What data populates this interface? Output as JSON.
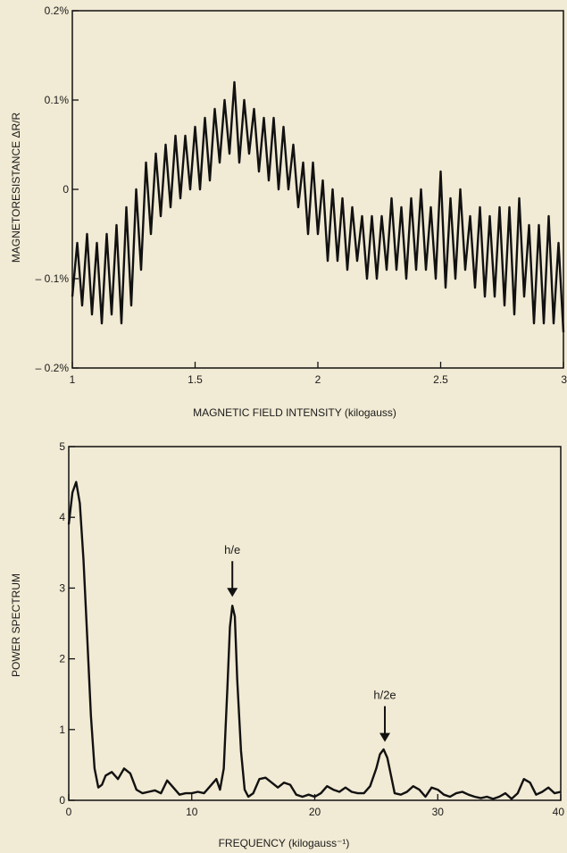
{
  "chart_data": [
    {
      "type": "line",
      "title": "",
      "xlabel": "MAGNETIC FIELD INTENSITY (kilogauss)",
      "ylabel": "MAGNETORESISTANCE ΔR/R",
      "xlim": [
        1,
        3
      ],
      "ylim": [
        -0.2,
        0.2
      ],
      "grid": false,
      "x_ticks": [
        {
          "value": 1,
          "label": "1"
        },
        {
          "value": 1.5,
          "label": "1.5"
        },
        {
          "value": 2,
          "label": "2"
        },
        {
          "value": 2.5,
          "label": "2.5"
        },
        {
          "value": 3,
          "label": "3"
        }
      ],
      "y_ticks": [
        {
          "value": 0.2,
          "label": "0.2%"
        },
        {
          "value": 0.1,
          "label": "0.1%"
        },
        {
          "value": 0,
          "label": "0"
        },
        {
          "value": -0.1,
          "label": "– 0.1%"
        },
        {
          "value": -0.2,
          "label": "– 0.2%"
        }
      ],
      "series": [
        {
          "color": "#111111",
          "x": [
            1.0,
            1.02,
            1.04,
            1.06,
            1.08,
            1.1,
            1.12,
            1.14,
            1.16,
            1.18,
            1.2,
            1.22,
            1.24,
            1.26,
            1.28,
            1.3,
            1.32,
            1.34,
            1.36,
            1.38,
            1.4,
            1.42,
            1.44,
            1.46,
            1.48,
            1.5,
            1.52,
            1.54,
            1.56,
            1.58,
            1.6,
            1.62,
            1.64,
            1.66,
            1.68,
            1.7,
            1.72,
            1.74,
            1.76,
            1.78,
            1.8,
            1.82,
            1.84,
            1.86,
            1.88,
            1.9,
            1.92,
            1.94,
            1.96,
            1.98,
            2.0,
            2.02,
            2.04,
            2.06,
            2.08,
            2.1,
            2.12,
            2.14,
            2.16,
            2.18,
            2.2,
            2.22,
            2.24,
            2.26,
            2.28,
            2.3,
            2.32,
            2.34,
            2.36,
            2.38,
            2.4,
            2.42,
            2.44,
            2.46,
            2.48,
            2.5,
            2.52,
            2.54,
            2.56,
            2.58,
            2.6,
            2.62,
            2.64,
            2.66,
            2.68,
            2.7,
            2.72,
            2.74,
            2.76,
            2.78,
            2.8,
            2.82,
            2.84,
            2.86,
            2.88,
            2.9,
            2.92,
            2.94,
            2.96,
            2.98,
            3.0
          ],
          "y": [
            -0.12,
            -0.06,
            -0.13,
            -0.05,
            -0.14,
            -0.06,
            -0.15,
            -0.05,
            -0.14,
            -0.04,
            -0.15,
            -0.02,
            -0.13,
            0.0,
            -0.09,
            0.03,
            -0.05,
            0.04,
            -0.03,
            0.05,
            -0.02,
            0.06,
            -0.01,
            0.06,
            0.0,
            0.07,
            0.0,
            0.08,
            0.01,
            0.09,
            0.03,
            0.1,
            0.04,
            0.12,
            0.03,
            0.1,
            0.04,
            0.09,
            0.02,
            0.08,
            0.01,
            0.08,
            0.0,
            0.07,
            0.0,
            0.05,
            -0.02,
            0.03,
            -0.05,
            0.03,
            -0.05,
            0.01,
            -0.08,
            0.0,
            -0.08,
            -0.01,
            -0.09,
            -0.02,
            -0.08,
            -0.03,
            -0.1,
            -0.03,
            -0.1,
            -0.03,
            -0.09,
            -0.01,
            -0.09,
            -0.02,
            -0.1,
            -0.01,
            -0.09,
            0.0,
            -0.09,
            -0.02,
            -0.1,
            0.02,
            -0.11,
            -0.01,
            -0.1,
            0.0,
            -0.09,
            -0.03,
            -0.11,
            -0.02,
            -0.12,
            -0.03,
            -0.12,
            -0.02,
            -0.13,
            -0.02,
            -0.14,
            -0.01,
            -0.12,
            -0.04,
            -0.15,
            -0.04,
            -0.15,
            -0.03,
            -0.15,
            -0.06,
            -0.16
          ]
        }
      ]
    },
    {
      "type": "line",
      "title": "",
      "xlabel": "FREQUENCY (kilogauss⁻¹)",
      "ylabel": "POWER SPECTRUM",
      "xlim": [
        0,
        40
      ],
      "ylim": [
        0,
        5
      ],
      "grid": false,
      "x_ticks": [
        {
          "value": 0,
          "label": "0"
        },
        {
          "value": 10,
          "label": "10"
        },
        {
          "value": 20,
          "label": "20"
        },
        {
          "value": 30,
          "label": "30"
        },
        {
          "value": 40,
          "label": "40"
        }
      ],
      "y_ticks": [
        {
          "value": 0,
          "label": "0"
        },
        {
          "value": 1,
          "label": "1"
        },
        {
          "value": 2,
          "label": "2"
        },
        {
          "value": 3,
          "label": "3"
        },
        {
          "value": 4,
          "label": "4"
        },
        {
          "value": 5,
          "label": "5"
        }
      ],
      "annotations": [
        {
          "text": "h/e",
          "x": 13.3,
          "y": 2.8
        },
        {
          "text": "h/2e",
          "x": 25.7,
          "y": 0.75
        }
      ],
      "series": [
        {
          "color": "#111111",
          "x": [
            0,
            0.3,
            0.6,
            0.9,
            1.2,
            1.5,
            1.8,
            2.1,
            2.4,
            2.7,
            3.0,
            3.5,
            4.0,
            4.5,
            5.0,
            5.5,
            6.0,
            6.5,
            7.0,
            7.5,
            8.0,
            8.5,
            9.0,
            9.5,
            10.0,
            10.5,
            11.0,
            11.5,
            12.0,
            12.3,
            12.6,
            12.9,
            13.1,
            13.3,
            13.5,
            13.7,
            14.0,
            14.3,
            14.6,
            15.0,
            15.5,
            16.0,
            16.5,
            17.0,
            17.5,
            18.0,
            18.5,
            19.0,
            19.5,
            20.0,
            20.5,
            21.0,
            21.5,
            22.0,
            22.5,
            23.0,
            23.5,
            24.0,
            24.5,
            25.0,
            25.3,
            25.6,
            25.9,
            26.2,
            26.5,
            27.0,
            27.5,
            28.0,
            28.5,
            29.0,
            29.5,
            30.0,
            30.5,
            31.0,
            31.5,
            32.0,
            32.5,
            33.0,
            33.5,
            34.0,
            34.5,
            35.0,
            35.5,
            36.0,
            36.5,
            37.0,
            37.5,
            38.0,
            38.5,
            39.0,
            39.5,
            40.0
          ],
          "y": [
            3.9,
            4.35,
            4.5,
            4.2,
            3.4,
            2.3,
            1.2,
            0.45,
            0.18,
            0.22,
            0.35,
            0.4,
            0.3,
            0.45,
            0.38,
            0.15,
            0.1,
            0.12,
            0.14,
            0.1,
            0.28,
            0.18,
            0.08,
            0.1,
            0.1,
            0.12,
            0.1,
            0.2,
            0.3,
            0.15,
            0.45,
            1.6,
            2.45,
            2.75,
            2.6,
            1.7,
            0.7,
            0.15,
            0.05,
            0.1,
            0.3,
            0.32,
            0.25,
            0.18,
            0.25,
            0.22,
            0.08,
            0.05,
            0.08,
            0.05,
            0.1,
            0.2,
            0.15,
            0.12,
            0.18,
            0.12,
            0.1,
            0.1,
            0.2,
            0.45,
            0.65,
            0.72,
            0.6,
            0.35,
            0.1,
            0.08,
            0.12,
            0.2,
            0.15,
            0.05,
            0.18,
            0.15,
            0.08,
            0.05,
            0.1,
            0.12,
            0.08,
            0.05,
            0.03,
            0.05,
            0.02,
            0.05,
            0.1,
            0.02,
            0.1,
            0.3,
            0.25,
            0.08,
            0.12,
            0.18,
            0.1,
            0.12
          ]
        }
      ]
    }
  ]
}
